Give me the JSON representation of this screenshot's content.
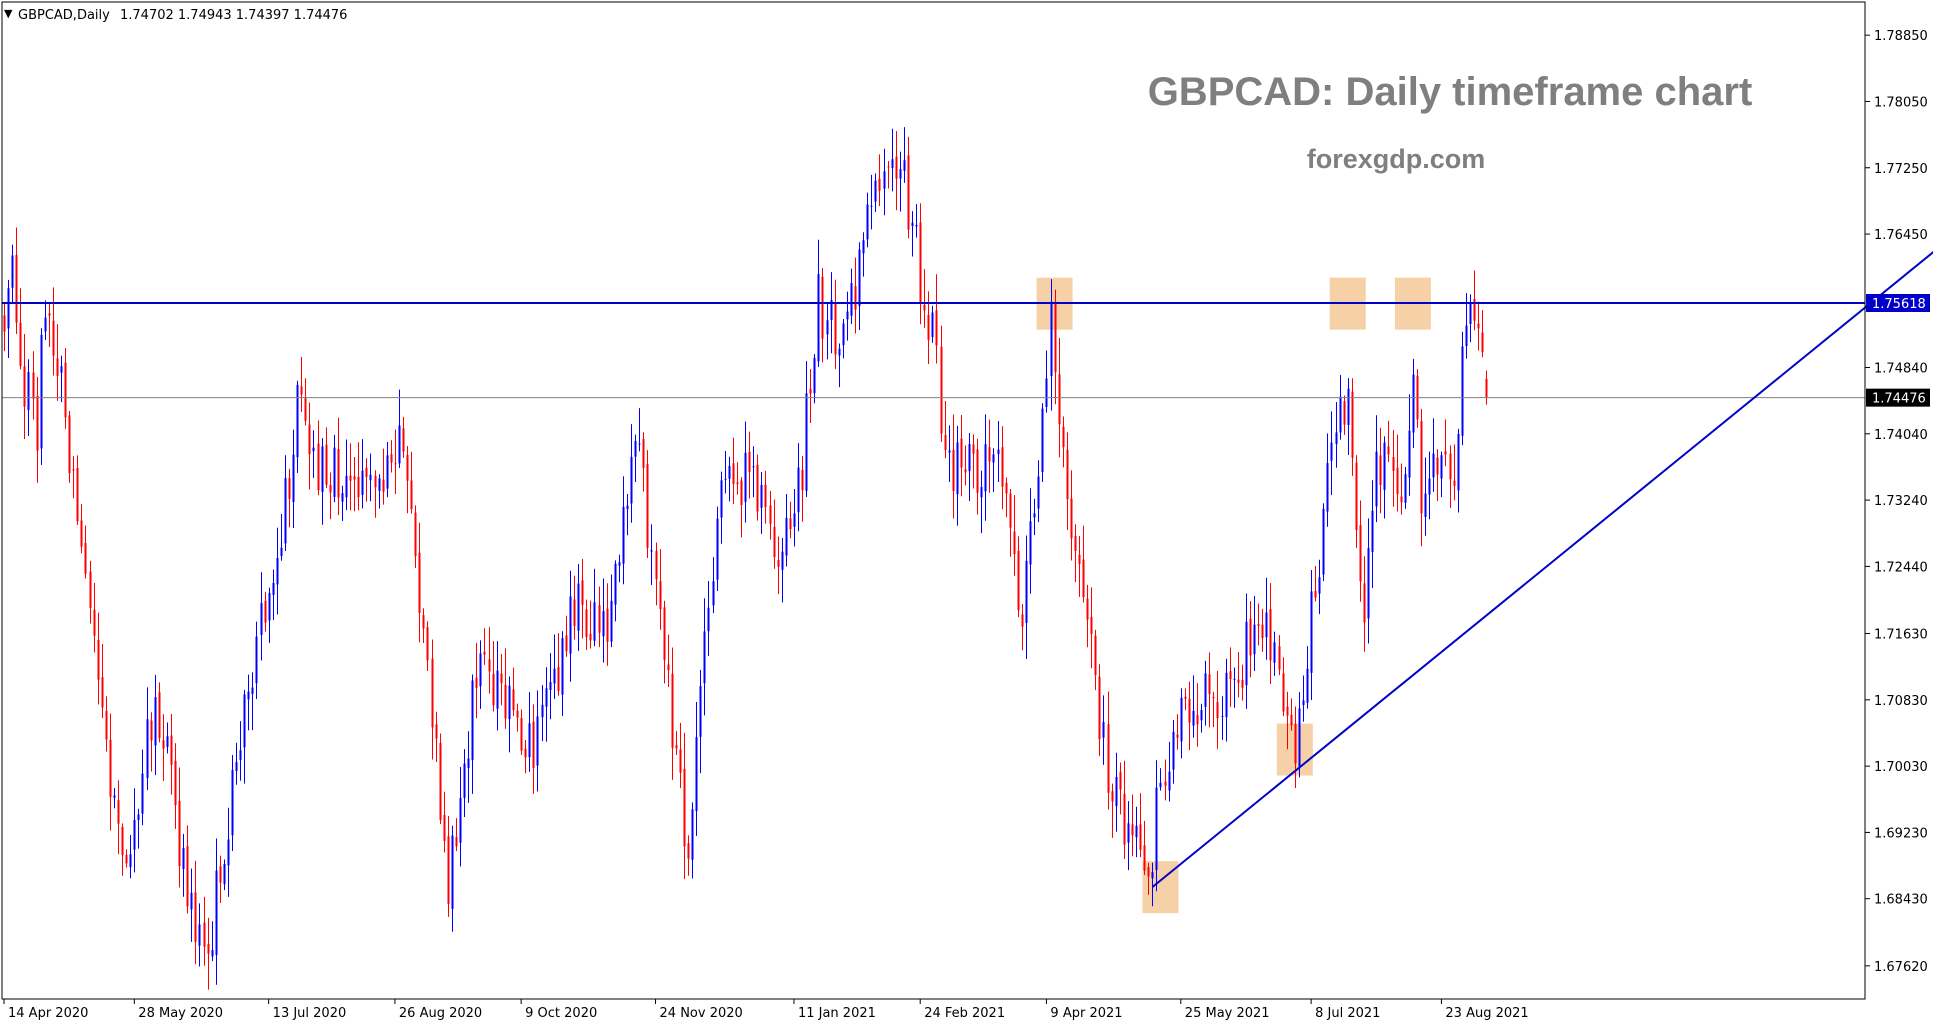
{
  "header": {
    "symbol_label": "GBPCAD,Daily",
    "ohlc_label": "1.74702 1.74943 1.74397 1.74476"
  },
  "watermark": {
    "title": "GBPCAD: Daily timeframe chart",
    "site": "forexgdp.com",
    "color": "#7f7f7f"
  },
  "chart_data": {
    "type": "candlestick",
    "symbol": "GBPCAD",
    "timeframe": "Daily",
    "ylim": [
      1.6722,
      1.7925
    ],
    "y_ticks": [
      "1.78850",
      "1.78050",
      "1.77250",
      "1.76450",
      "1.75618",
      "1.74840",
      "1.74476",
      "1.74040",
      "1.73240",
      "1.72440",
      "1.71630",
      "1.70830",
      "1.70030",
      "1.69230",
      "1.68430",
      "1.67620"
    ],
    "y_tick_values": [
      1.7885,
      1.7805,
      1.7725,
      1.7645,
      1.7484,
      1.7404,
      1.7324,
      1.7244,
      1.7163,
      1.7083,
      1.7003,
      1.6923,
      1.6843,
      1.6762
    ],
    "x_ticks": [
      "14 Apr 2020",
      "28 May 2020",
      "13 Jul 2020",
      "26 Aug 2020",
      "9 Oct 2020",
      "24 Nov 2020",
      "11 Jan 2021",
      "24 Feb 2021",
      "9 Apr 2021",
      "25 May 2021",
      "8 Jul 2021",
      "23 Aug 2021"
    ],
    "x_tick_bar_index": [
      0,
      32,
      65,
      96,
      127,
      160,
      194,
      225,
      256,
      289,
      321,
      353
    ],
    "resistance": {
      "value": 1.75618,
      "label": "1.75618",
      "color": "#0000c8"
    },
    "current_price": {
      "value": 1.74476,
      "label": "1.74476",
      "color": "#808080"
    },
    "trendline": {
      "start": {
        "bar": 282,
        "price": 1.6857
      },
      "end": {
        "bar": 485,
        "price": 1.7668
      },
      "color": "#0000c8"
    },
    "highlight_zones": [
      {
        "bar": 284,
        "price": 1.6857
      },
      {
        "bar": 258,
        "price": 1.7561
      },
      {
        "bar": 317,
        "price": 1.7023
      },
      {
        "bar": 330,
        "price": 1.7561
      },
      {
        "bar": 346,
        "price": 1.7561
      }
    ],
    "highlight_color": "#f5c896",
    "bull_color": "#0000ff",
    "bear_color": "#ff0000",
    "bar_count": 370,
    "path": [
      {
        "i": 0,
        "p": 1.755
      },
      {
        "i": 2,
        "p": 1.764
      },
      {
        "i": 4,
        "p": 1.748
      },
      {
        "i": 8,
        "p": 1.742
      },
      {
        "i": 10,
        "p": 1.756
      },
      {
        "i": 14,
        "p": 1.746
      },
      {
        "i": 18,
        "p": 1.729
      },
      {
        "i": 23,
        "p": 1.709
      },
      {
        "i": 30,
        "p": 1.688
      },
      {
        "i": 37,
        "p": 1.71
      },
      {
        "i": 45,
        "p": 1.685
      },
      {
        "i": 50,
        "p": 1.678
      },
      {
        "i": 58,
        "p": 1.705
      },
      {
        "i": 66,
        "p": 1.723
      },
      {
        "i": 73,
        "p": 1.746
      },
      {
        "i": 77,
        "p": 1.736
      },
      {
        "i": 85,
        "p": 1.735
      },
      {
        "i": 92,
        "p": 1.733
      },
      {
        "i": 97,
        "p": 1.742
      },
      {
        "i": 104,
        "p": 1.713
      },
      {
        "i": 109,
        "p": 1.687
      },
      {
        "i": 116,
        "p": 1.712
      },
      {
        "i": 123,
        "p": 1.709
      },
      {
        "i": 130,
        "p": 1.702
      },
      {
        "i": 140,
        "p": 1.72
      },
      {
        "i": 148,
        "p": 1.718
      },
      {
        "i": 155,
        "p": 1.74
      },
      {
        "i": 161,
        "p": 1.719
      },
      {
        "i": 166,
        "p": 1.696
      },
      {
        "i": 168,
        "p": 1.69
      },
      {
        "i": 171,
        "p": 1.708
      },
      {
        "i": 176,
        "p": 1.733
      },
      {
        "i": 184,
        "p": 1.735
      },
      {
        "i": 190,
        "p": 1.725
      },
      {
        "i": 196,
        "p": 1.737
      },
      {
        "i": 200,
        "p": 1.756
      },
      {
        "i": 206,
        "p": 1.751
      },
      {
        "i": 212,
        "p": 1.765
      },
      {
        "i": 218,
        "p": 1.775
      },
      {
        "i": 221,
        "p": 1.772
      },
      {
        "i": 224,
        "p": 1.762
      },
      {
        "i": 228,
        "p": 1.753
      },
      {
        "i": 231,
        "p": 1.738
      },
      {
        "i": 236,
        "p": 1.735
      },
      {
        "i": 243,
        "p": 1.738
      },
      {
        "i": 250,
        "p": 1.72
      },
      {
        "i": 254,
        "p": 1.736
      },
      {
        "i": 257,
        "p": 1.754
      },
      {
        "i": 261,
        "p": 1.731
      },
      {
        "i": 266,
        "p": 1.716
      },
      {
        "i": 272,
        "p": 1.697
      },
      {
        "i": 277,
        "p": 1.69
      },
      {
        "i": 281,
        "p": 1.688
      },
      {
        "i": 287,
        "p": 1.706
      },
      {
        "i": 298,
        "p": 1.709
      },
      {
        "i": 305,
        "p": 1.714
      },
      {
        "i": 311,
        "p": 1.716
      },
      {
        "i": 317,
        "p": 1.703
      },
      {
        "i": 322,
        "p": 1.723
      },
      {
        "i": 327,
        "p": 1.74
      },
      {
        "i": 330,
        "p": 1.747
      },
      {
        "i": 332,
        "p": 1.727
      },
      {
        "i": 334,
        "p": 1.72
      },
      {
        "i": 337,
        "p": 1.738
      },
      {
        "i": 343,
        "p": 1.734
      },
      {
        "i": 346,
        "p": 1.747
      },
      {
        "i": 348,
        "p": 1.732
      },
      {
        "i": 351,
        "p": 1.735
      },
      {
        "i": 356,
        "p": 1.734
      },
      {
        "i": 359,
        "p": 1.755
      },
      {
        "i": 362,
        "p": 1.752
      },
      {
        "i": 364,
        "p": 1.7448
      }
    ]
  }
}
